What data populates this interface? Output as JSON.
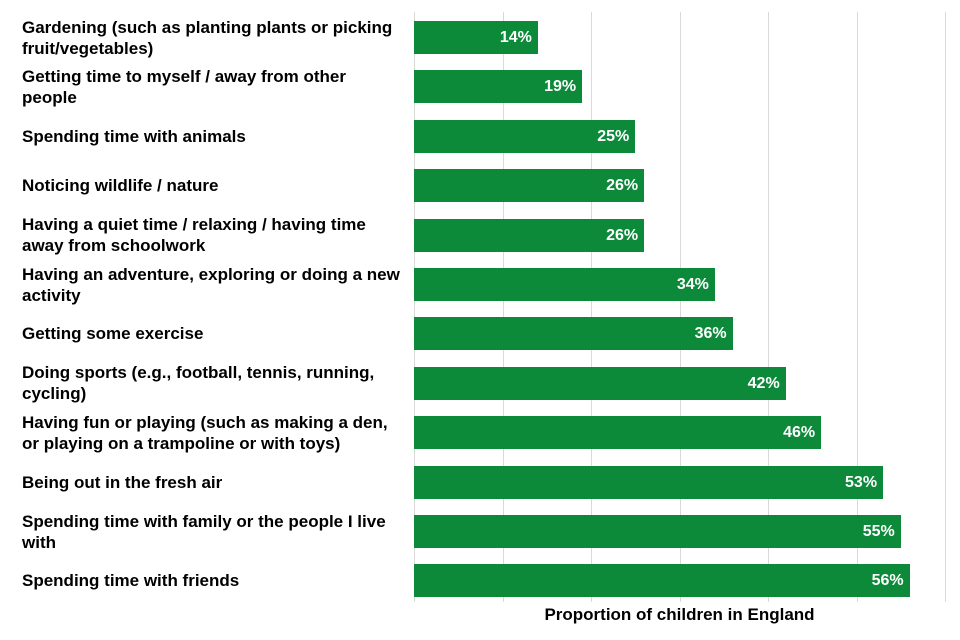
{
  "chart_data": {
    "type": "bar",
    "orientation": "horizontal",
    "categories": [
      "Gardening (such as planting plants or picking fruit/vegetables)",
      "Getting time to myself / away from other people",
      "Spending time with animals",
      "Noticing wildlife / nature",
      "Having a quiet time / relaxing / having time away from schoolwork",
      "Having an adventure, exploring or doing a new activity",
      "Getting some exercise",
      "Doing sports (e.g., football, tennis, running, cycling)",
      "Having fun or playing (such as making a den, or playing on a trampoline or with toys)",
      "Being out in the fresh air",
      "Spending time with family or the people I live with",
      "Spending time with friends"
    ],
    "values": [
      14,
      19,
      25,
      26,
      26,
      34,
      36,
      42,
      46,
      53,
      55,
      56
    ],
    "value_labels": [
      "14%",
      "19%",
      "25%",
      "26%",
      "26%",
      "34%",
      "36%",
      "42%",
      "46%",
      "53%",
      "55%",
      "56%"
    ],
    "xlabel": "Proportion of children in England",
    "ylabel": "",
    "xlim": [
      0,
      60
    ],
    "grid": true,
    "bar_color": "#0c8a3a"
  }
}
